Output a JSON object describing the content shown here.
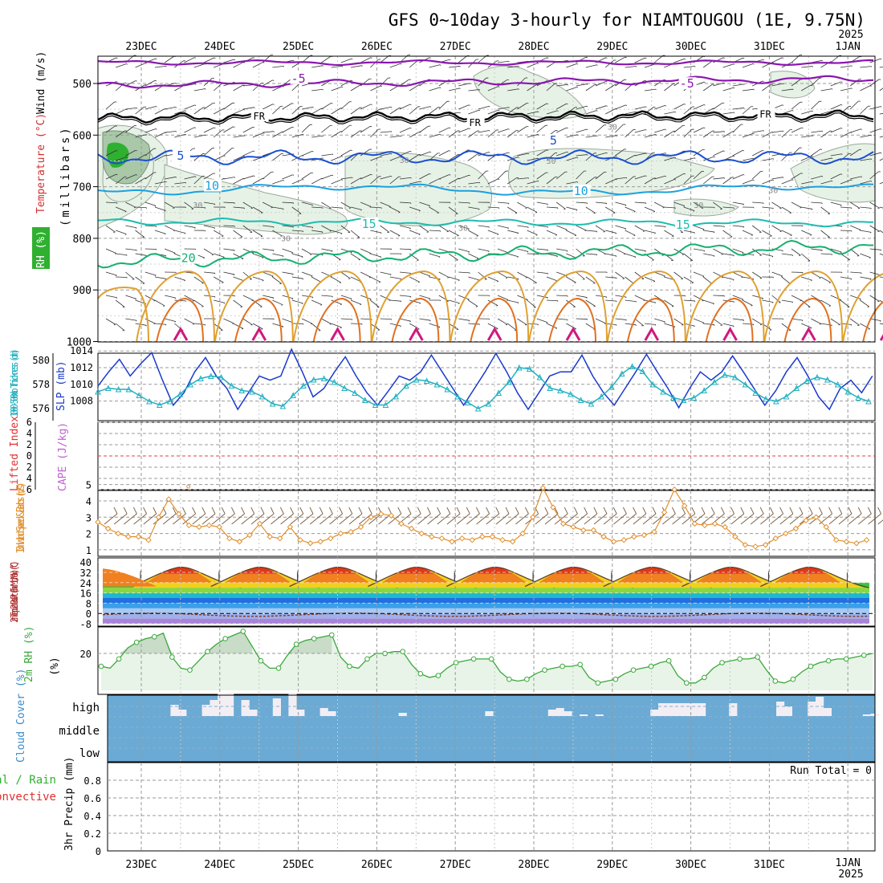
{
  "title": "GFS 0~10day 3-hourly for NIAMTOUGOU (1E, 9.75N)",
  "year_top": "2025",
  "year_bottom": "2025",
  "dates": [
    "23DEC",
    "24DEC",
    "25DEC",
    "26DEC",
    "27DEC",
    "28DEC",
    "29DEC",
    "30DEC",
    "31DEC",
    "1JAN"
  ],
  "chart_data": [
    {
      "type": "contour",
      "name": "upper-air",
      "ylabel_parts": [
        "RH (%)",
        "Temperature (°C)",
        "Wind (m/s)"
      ],
      "ylabel_axis": "(millibars)",
      "y_ticks": [
        500,
        600,
        700,
        800,
        900,
        1000
      ],
      "ylim": [
        450,
        1000
      ],
      "contour_labels": [
        {
          "text": "-5",
          "day": 2.0,
          "p": 495
        },
        {
          "text": "-5",
          "day": 6.95,
          "p": 505
        },
        {
          "text": "FR",
          "day": 1.5,
          "p": 567
        },
        {
          "text": "FR",
          "day": 4.25,
          "p": 579
        },
        {
          "text": "FR",
          "day": 7.95,
          "p": 563
        },
        {
          "text": "5",
          "day": 0.5,
          "p": 645
        },
        {
          "text": "5",
          "day": 5.25,
          "p": 615
        },
        {
          "text": "10",
          "day": 0.9,
          "p": 703
        },
        {
          "text": "10",
          "day": 5.6,
          "p": 713
        },
        {
          "text": "15",
          "day": 2.9,
          "p": 777
        },
        {
          "text": "15",
          "day": 6.9,
          "p": 778
        },
        {
          "text": "20",
          "day": 0.6,
          "p": 843
        }
      ],
      "rh_labels": [
        {
          "text": "30",
          "day": 0.72,
          "p": 735
        },
        {
          "text": "30",
          "day": 1.84,
          "p": 799
        },
        {
          "text": "30",
          "day": 3.35,
          "p": 648
        },
        {
          "text": "30",
          "day": 4.1,
          "p": 779
        },
        {
          "text": "30",
          "day": 5.22,
          "p": 649
        },
        {
          "text": "30",
          "day": 6.0,
          "p": 583
        },
        {
          "text": "30",
          "day": 7.1,
          "p": 735
        },
        {
          "text": "30",
          "day": 8.05,
          "p": 706
        }
      ]
    },
    {
      "type": "line",
      "name": "thickness-slp",
      "ylabel_left": "1000-500mb Thickness (dm)",
      "ylabel_right": "SLP (mb)",
      "left_ticks": [
        576,
        578,
        580
      ],
      "right_ticks": [
        1008,
        1010,
        1012,
        1014
      ],
      "series": [
        {
          "name": "SLP (mb)",
          "color": "#1a3acc",
          "values": [
            1009.8,
            1011.5,
            1013.0,
            1011.0,
            1012.5,
            1013.8,
            1010.5,
            1007.5,
            1009.0,
            1011.5,
            1013.2,
            1011.0,
            1009.5,
            1007.0,
            1009.0,
            1011.0,
            1010.5,
            1011.0,
            1014.2,
            1011.5,
            1008.5,
            1009.5,
            1011.5,
            1013.3,
            1011.0,
            1009.0,
            1007.5,
            1009.2,
            1011.0,
            1010.5,
            1011.5,
            1013.5,
            1011.5,
            1009.5,
            1007.5,
            1009.5,
            1011.5,
            1013.7,
            1011.5,
            1009.0,
            1007.0,
            1009.0,
            1011.0,
            1011.5,
            1011.5,
            1013.5,
            1011.0,
            1009.0,
            1007.5,
            1009.5,
            1011.5,
            1013.6,
            1011.5,
            1009.5,
            1007.2,
            1009.5,
            1011.5,
            1010.5,
            1011.5,
            1013.4,
            1011.5,
            1009.5,
            1007.5,
            1009.2,
            1011.5,
            1013.2,
            1011.0,
            1008.5,
            1007.0,
            1009.5,
            1010.5,
            1009.0,
            1011.0
          ]
        },
        {
          "name": "1000-500mb Thickness (dm)",
          "color": "#22b0c0",
          "values": [
            577.4,
            577.7,
            577.6,
            577.6,
            577.1,
            576.6,
            576.3,
            576.6,
            577.2,
            578.0,
            578.5,
            578.7,
            578.6,
            577.9,
            577.5,
            577.4,
            577.0,
            576.4,
            576.2,
            577.1,
            577.9,
            578.4,
            578.5,
            578.2,
            577.7,
            577.3,
            576.7,
            576.3,
            576.3,
            577.0,
            577.9,
            578.4,
            578.3,
            578.0,
            577.6,
            577.0,
            576.5,
            576.0,
            576.4,
            577.3,
            578.2,
            579.4,
            579.3,
            578.6,
            577.7,
            577.5,
            577.2,
            576.7,
            576.4,
            577.0,
            577.8,
            578.9,
            579.5,
            579.1,
            578.0,
            577.4,
            576.9,
            576.7,
            576.9,
            577.5,
            578.2,
            578.8,
            578.6,
            578.0,
            577.3,
            576.8,
            576.6,
            577.0,
            577.7,
            578.3,
            578.6,
            578.4,
            578.0,
            577.4,
            576.9,
            576.6
          ]
        }
      ]
    },
    {
      "type": "line",
      "name": "stability",
      "ylabel_left": "Lifted Index",
      "ylabel_right": "CAPE (J/kg)",
      "li_ticks": [
        -6,
        -4,
        -2,
        0,
        2,
        4,
        6
      ],
      "cape_point": {
        "day": 0.6,
        "value": 0
      }
    },
    {
      "type": "line",
      "name": "10m-wind",
      "ylabel": "10m Wind Speed & Barbs (m/s)",
      "y_ticks": [
        1,
        2,
        3,
        4,
        5
      ],
      "ylim": [
        1,
        5
      ],
      "series": [
        {
          "name": "10m Wind Speed",
          "color": "#e09030",
          "values": [
            2.7,
            2.3,
            2.0,
            1.8,
            1.8,
            1.6,
            3.0,
            4.1,
            3.2,
            2.5,
            2.4,
            2.5,
            2.4,
            1.7,
            1.5,
            1.9,
            2.6,
            1.8,
            1.7,
            2.4,
            1.6,
            1.4,
            1.5,
            1.7,
            2.0,
            2.1,
            2.4,
            3.0,
            3.2,
            3.1,
            2.6,
            2.3,
            2.0,
            1.8,
            1.7,
            1.5,
            1.7,
            1.6,
            1.8,
            1.8,
            1.6,
            1.5,
            2.0,
            3.0,
            4.8,
            3.6,
            2.6,
            2.4,
            2.2,
            2.2,
            1.8,
            1.5,
            1.6,
            1.8,
            1.9,
            2.1,
            3.3,
            4.7,
            3.7,
            2.6,
            2.5,
            2.6,
            2.4,
            1.8,
            1.3,
            1.2,
            1.3,
            1.7,
            2.0,
            2.3,
            2.8,
            3.0,
            2.4,
            1.6,
            1.5,
            1.4,
            1.6
          ]
        }
      ]
    },
    {
      "type": "area",
      "name": "temperature",
      "ylabel": "2m Temp 2m DewPt (6hr Min/Max) (°C)",
      "y_ticks": [
        -8,
        0,
        8,
        16,
        24,
        32,
        40
      ],
      "ylim": [
        -8,
        40
      ],
      "temp_min": 20,
      "temp_max": 35,
      "dewpoint": -1
    },
    {
      "type": "area",
      "name": "2m-rh",
      "ylabel": "2m RH (%)",
      "y_ticks": [
        20
      ],
      "ylim": [
        0,
        40
      ],
      "series": [
        {
          "name": "2m RH",
          "color": "#3aa83a",
          "values": [
            13,
            12,
            17,
            23,
            26,
            28,
            29,
            31,
            18,
            12,
            11,
            16,
            21,
            25,
            28,
            30,
            32,
            24,
            16,
            12,
            12,
            19,
            25,
            27,
            28,
            29,
            30,
            18,
            13,
            12,
            17,
            20,
            20,
            21,
            21,
            14,
            9,
            7,
            8,
            12,
            15,
            16,
            17,
            17,
            17,
            10,
            6,
            5,
            6,
            9,
            11,
            12,
            13,
            13,
            14,
            7,
            4,
            5,
            6,
            9,
            11,
            12,
            13,
            15,
            16,
            8,
            4,
            4,
            7,
            12,
            15,
            16,
            17,
            17,
            18,
            11,
            5,
            4,
            6,
            10,
            13,
            15,
            16,
            17,
            17,
            18,
            19,
            20
          ]
        }
      ]
    },
    {
      "type": "bar",
      "name": "cloud-cover",
      "ylabel": "Cloud Cover (%)",
      "levels": [
        "high",
        "middle",
        "low"
      ],
      "high_values": [
        0,
        0,
        0,
        0,
        0,
        0,
        0,
        0,
        14,
        8,
        0,
        0,
        14,
        20,
        28,
        29,
        0,
        20,
        8,
        0,
        0,
        22,
        0,
        29,
        8,
        0,
        0,
        10,
        6,
        0,
        0,
        0,
        0,
        0,
        0,
        0,
        0,
        4,
        0,
        0,
        0,
        0,
        0,
        0,
        0,
        0,
        0,
        0,
        6,
        0,
        0,
        0,
        0,
        0,
        0,
        0,
        8,
        10,
        6,
        0,
        2,
        0,
        2,
        0,
        0,
        0,
        0,
        0,
        0,
        8,
        16,
        16,
        16,
        16,
        16,
        16,
        0,
        0,
        0,
        16,
        0,
        0,
        0,
        0,
        0,
        18,
        12,
        0,
        0,
        18,
        24,
        10,
        0,
        0,
        0,
        0,
        2,
        3,
        0,
        0
      ]
    },
    {
      "type": "bar",
      "name": "precipitation",
      "ylabel": "3hr Precip (mm)",
      "legend": [
        "Total / Rain",
        "Convective"
      ],
      "y_ticks": [
        0,
        0.2,
        0.4,
        0.6,
        0.8
      ],
      "ylim": [
        0,
        1.0
      ],
      "run_total_label": "Run Total = 0",
      "values": []
    }
  ],
  "colors": {
    "grid": "#999999",
    "purple": "#8a16b0",
    "blue": "#1a4fd0",
    "lightblue": "#1da0e0",
    "teal": "#1dbcb0",
    "green": "#16b070",
    "rh_fill": "#e6f2e6",
    "cloud_sky": "#6aaad4"
  }
}
